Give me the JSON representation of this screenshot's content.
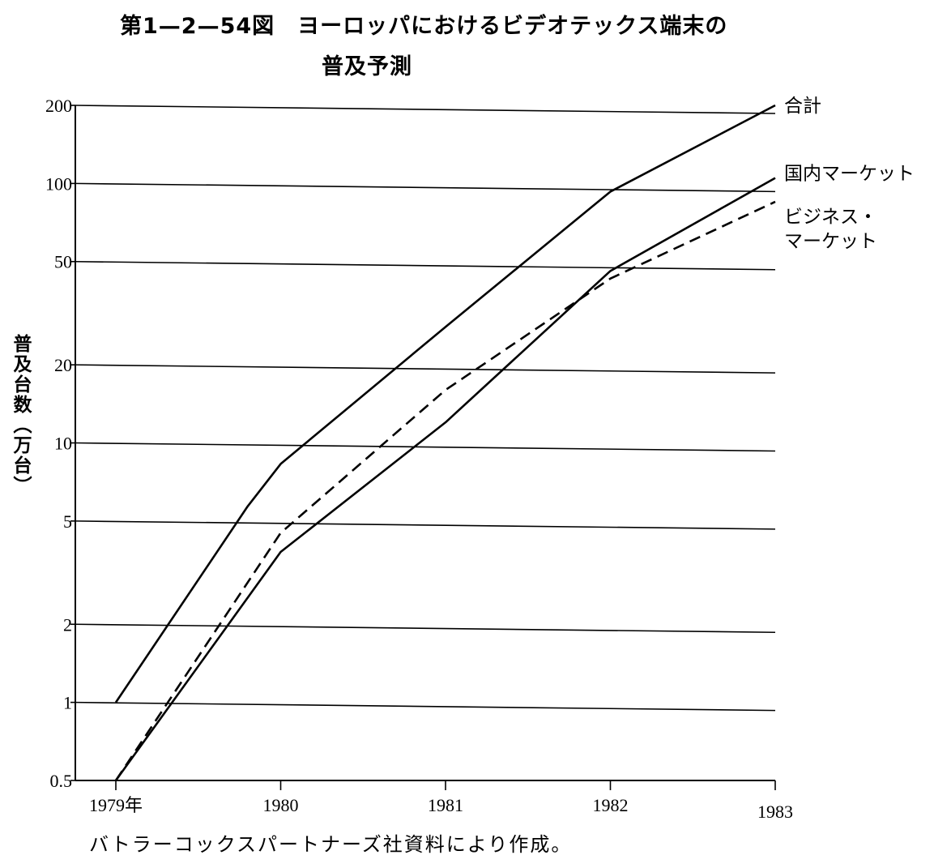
{
  "title_line1": "第1—2—54図　ヨーロッパにおけるビデオテックス端末の",
  "title_line2": "普及予測",
  "ylabel": "普及台数（万台）",
  "source": "バトラーコックスパートナーズ社資料により作成。",
  "chart_data": {
    "type": "line",
    "yscale": "log",
    "ylim": [
      0.5,
      200
    ],
    "xlim": [
      1979,
      1983
    ],
    "ylabel": "普及台数（万台）",
    "xlabel": "",
    "grid": true,
    "y_ticks": [
      {
        "value": 0.5,
        "label": "0.5"
      },
      {
        "value": 1,
        "label": "1"
      },
      {
        "value": 2,
        "label": "2"
      },
      {
        "value": 5,
        "label": "5"
      },
      {
        "value": 10,
        "label": "10"
      },
      {
        "value": 20,
        "label": "20"
      },
      {
        "value": 50,
        "label": "50"
      },
      {
        "value": 100,
        "label": "100"
      },
      {
        "value": 200,
        "label": "200"
      }
    ],
    "x_ticks": [
      {
        "value": 1979,
        "label": "1979年"
      },
      {
        "value": 1980,
        "label": "1980"
      },
      {
        "value": 1981,
        "label": "1981"
      },
      {
        "value": 1982,
        "label": "1982"
      },
      {
        "value": 1983,
        "label": "1983"
      }
    ],
    "series": [
      {
        "name": "合計",
        "style": "solid",
        "x": [
          1979,
          1979.8,
          1980,
          1981,
          1982,
          1983
        ],
        "y": [
          1,
          5.7,
          8.3,
          28,
          93,
          200
        ]
      },
      {
        "name": "国内マーケット",
        "style": "solid",
        "x": [
          1979,
          1980,
          1981,
          1982,
          1983
        ],
        "y": [
          0.5,
          3.8,
          12,
          46,
          105
        ]
      },
      {
        "name": "ビジネス・マーケット",
        "name_lines": [
          "ビジネス・",
          "マーケット"
        ],
        "style": "dashed",
        "x": [
          1979,
          1980,
          1981,
          1982,
          1983
        ],
        "y": [
          0.5,
          4.5,
          16,
          43,
          85
        ]
      }
    ]
  }
}
